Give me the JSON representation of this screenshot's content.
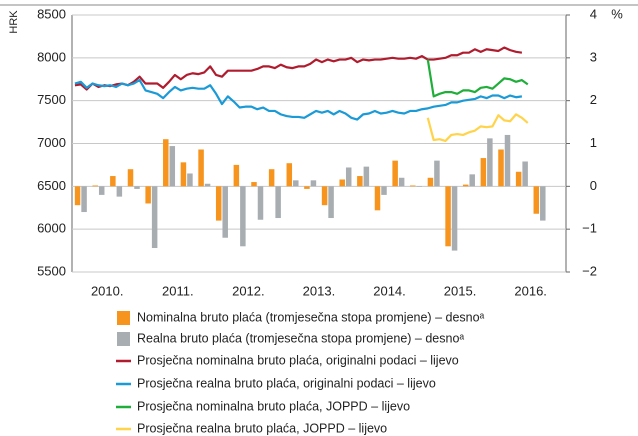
{
  "chart_data": {
    "type": "combo",
    "ylabel": "HRK",
    "y2label": "%",
    "ylim": [
      5500,
      8500
    ],
    "yticks": [
      5500,
      6000,
      6500,
      7000,
      7500,
      8000,
      8500
    ],
    "y2lim": [
      -2,
      4
    ],
    "y2ticks": [
      {
        "value": -2,
        "label": "−2"
      },
      {
        "value": -1,
        "label": "−1"
      },
      0,
      1,
      2,
      3,
      4
    ],
    "grid": true,
    "categories": [
      null,
      null,
      null,
      null,
      null,
      null,
      "2010.",
      null,
      null,
      null,
      null,
      null,
      null,
      null,
      null,
      null,
      null,
      null,
      "2011.",
      null,
      null,
      null,
      null,
      null,
      null,
      null,
      null,
      null,
      null,
      null,
      "2012.",
      null,
      null,
      null,
      null,
      null,
      null,
      null,
      null,
      null,
      null,
      null,
      "2013.",
      null,
      null,
      null,
      null,
      null,
      null,
      null,
      null,
      null,
      null,
      null,
      "2014.",
      null,
      null,
      null,
      null,
      null,
      null,
      null,
      null,
      null,
      null,
      null,
      "2015.",
      null,
      null,
      null,
      null,
      null,
      null,
      null,
      null,
      null,
      null,
      null,
      "2016.",
      null,
      null,
      null,
      null,
      null
    ],
    "series": [
      {
        "name": "Nominalna bruto plaća (tromjesečna stopa promjene) – desnoᵃ",
        "type": "bar",
        "axis": "y2",
        "color": "#f7941d",
        "values": [
          null,
          -0.44,
          null,
          null,
          0.02,
          null,
          null,
          0.24,
          null,
          null,
          0.4,
          null,
          null,
          -0.4,
          null,
          null,
          1.1,
          null,
          null,
          0.56,
          null,
          null,
          0.86,
          null,
          null,
          -0.8,
          null,
          null,
          0.5,
          null,
          null,
          0.1,
          null,
          null,
          0.4,
          null,
          null,
          0.54,
          null,
          null,
          -0.06,
          null,
          null,
          -0.44,
          null,
          null,
          0.16,
          null,
          null,
          0.24,
          null,
          null,
          -0.56,
          null,
          null,
          0.6,
          null,
          null,
          0.02,
          null,
          null,
          0.2,
          null,
          null,
          -1.4,
          null,
          null,
          0.04,
          null,
          null,
          0.66,
          null,
          null,
          0.86,
          null,
          null,
          0.34,
          null,
          null,
          -0.64,
          null,
          null,
          null,
          null
        ]
      },
      {
        "name": "Realna bruto plaća (tromjesečna stopa promjene) – desnoᵃ",
        "type": "bar",
        "axis": "y2",
        "color": "#a7adb1",
        "values": [
          null,
          -0.6,
          null,
          null,
          -0.2,
          null,
          null,
          -0.24,
          null,
          null,
          -0.06,
          null,
          null,
          -1.44,
          null,
          null,
          0.94,
          null,
          null,
          0.3,
          null,
          null,
          0.06,
          null,
          null,
          -1.2,
          null,
          null,
          -1.4,
          null,
          null,
          -0.78,
          null,
          null,
          -0.74,
          null,
          null,
          0.14,
          null,
          null,
          0.14,
          null,
          null,
          -0.74,
          null,
          null,
          0.44,
          null,
          null,
          0.46,
          null,
          null,
          -0.2,
          null,
          null,
          0.2,
          null,
          null,
          0,
          null,
          null,
          0.6,
          null,
          null,
          -1.5,
          null,
          null,
          0.28,
          null,
          null,
          1.12,
          null,
          null,
          1.2,
          null,
          null,
          0.58,
          null,
          null,
          -0.8,
          null,
          null,
          null,
          null
        ]
      },
      {
        "name": "Prosječna nominalna bruto plaća, originalni podaci – lijevo",
        "type": "line",
        "color": "#b01c2e",
        "values": [
          7680,
          7690,
          7630,
          7700,
          7660,
          7680,
          7670,
          7690,
          7700,
          7680,
          7720,
          7780,
          7700,
          7700,
          7700,
          7650,
          7720,
          7800,
          7750,
          7800,
          7820,
          7810,
          7830,
          7900,
          7800,
          7780,
          7850,
          7850,
          7850,
          7850,
          7850,
          7870,
          7900,
          7900,
          7880,
          7920,
          7890,
          7880,
          7900,
          7900,
          7930,
          7980,
          7950,
          7980,
          7960,
          7980,
          7980,
          8000,
          7950,
          7980,
          7970,
          7980,
          7980,
          7990,
          8000,
          7990,
          7990,
          8000,
          7990,
          8020,
          7980,
          7980,
          7990,
          8000,
          8030,
          8030,
          8060,
          8060,
          8100,
          8070,
          8100,
          8090,
          8080,
          8120,
          8090,
          8070,
          8060,
          null,
          null,
          null,
          null,
          null,
          null,
          null
        ]
      },
      {
        "name": "Prosječna realna bruto plaća, originalni podaci – lijevo",
        "type": "line",
        "color": "#1a9ad6",
        "values": [
          7700,
          7720,
          7650,
          7700,
          7680,
          7670,
          7680,
          7660,
          7700,
          7680,
          7700,
          7740,
          7620,
          7600,
          7580,
          7530,
          7600,
          7660,
          7620,
          7640,
          7650,
          7640,
          7640,
          7680,
          7580,
          7460,
          7550,
          7490,
          7420,
          7430,
          7430,
          7400,
          7420,
          7380,
          7380,
          7340,
          7320,
          7310,
          7310,
          7300,
          7340,
          7380,
          7360,
          7380,
          7340,
          7380,
          7350,
          7300,
          7280,
          7340,
          7350,
          7380,
          7350,
          7360,
          7380,
          7360,
          7350,
          7380,
          7380,
          7400,
          7410,
          7430,
          7440,
          7450,
          7480,
          7480,
          7500,
          7510,
          7520,
          7550,
          7530,
          7560,
          7560,
          7530,
          7560,
          7540,
          7550,
          null,
          null,
          null,
          null,
          null,
          null,
          null
        ]
      },
      {
        "name": "Prosječna nominalna bruto plaća, JOPPD – lijevo",
        "type": "line",
        "color": "#1fae3a",
        "values": [
          null,
          null,
          null,
          null,
          null,
          null,
          null,
          null,
          null,
          null,
          null,
          null,
          null,
          null,
          null,
          null,
          null,
          null,
          null,
          null,
          null,
          null,
          null,
          null,
          null,
          null,
          null,
          null,
          null,
          null,
          null,
          null,
          null,
          null,
          null,
          null,
          null,
          null,
          null,
          null,
          null,
          null,
          null,
          null,
          null,
          null,
          null,
          null,
          null,
          null,
          null,
          null,
          null,
          null,
          null,
          null,
          null,
          null,
          null,
          null,
          7980,
          7550,
          7580,
          7600,
          7600,
          7580,
          7620,
          7620,
          7600,
          7650,
          7660,
          7640,
          7700,
          7760,
          7750,
          7720,
          7740,
          7690,
          null,
          null,
          null,
          null,
          null,
          null
        ]
      },
      {
        "name": "Prosječna realna bruto plaća, JOPPD – lijevo",
        "type": "line",
        "color": "#ffd34a",
        "values": [
          null,
          null,
          null,
          null,
          null,
          null,
          null,
          null,
          null,
          null,
          null,
          null,
          null,
          null,
          null,
          null,
          null,
          null,
          null,
          null,
          null,
          null,
          null,
          null,
          null,
          null,
          null,
          null,
          null,
          null,
          null,
          null,
          null,
          null,
          null,
          null,
          null,
          null,
          null,
          null,
          null,
          null,
          null,
          null,
          null,
          null,
          null,
          null,
          null,
          null,
          null,
          null,
          null,
          null,
          null,
          null,
          null,
          null,
          null,
          null,
          7300,
          7040,
          7050,
          7030,
          7100,
          7110,
          7100,
          7130,
          7150,
          7200,
          7190,
          7200,
          7330,
          7270,
          7260,
          7340,
          7300,
          7240,
          null,
          null,
          null,
          null,
          null,
          null
        ]
      }
    ]
  }
}
